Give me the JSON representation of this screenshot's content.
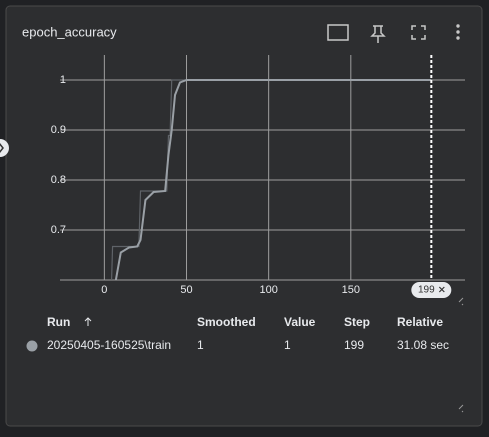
{
  "card": {
    "title": "epoch_accuracy"
  },
  "chart_data": {
    "type": "line",
    "xlim": [
      -27,
      219.5
    ],
    "xticks": [
      0,
      50,
      100,
      150
    ],
    "ylim": [
      0.6,
      1.05
    ],
    "yticks": [
      0.7,
      0.8,
      0.9,
      1
    ],
    "grid": true,
    "series": [
      {
        "color": "#5f6368",
        "x": [
          0,
          4,
          5,
          21,
          22,
          38,
          39,
          40,
          41,
          199
        ],
        "values": [
          0.556,
          0.556,
          0.667,
          0.667,
          0.778,
          0.778,
          0.889,
          0.889,
          1,
          1
        ]
      },
      {
        "color": "#9aa0a6",
        "x": [
          6,
          7,
          10,
          15,
          20,
          22,
          25,
          30,
          37,
          39,
          41,
          43,
          46,
          50,
          199
        ],
        "values": [
          0.556,
          0.6,
          0.655,
          0.665,
          0.667,
          0.68,
          0.76,
          0.776,
          0.778,
          0.85,
          0.9,
          0.97,
          0.995,
          1,
          1
        ]
      }
    ],
    "step_marker": {
      "x": 199,
      "label": "199"
    }
  },
  "table": {
    "headers": [
      "Run",
      "Smoothed",
      "Value",
      "Step",
      "Relative"
    ],
    "rows": [
      [
        "20250405-160525\\train",
        "1",
        "1",
        "199",
        "31.08 sec"
      ]
    ]
  }
}
